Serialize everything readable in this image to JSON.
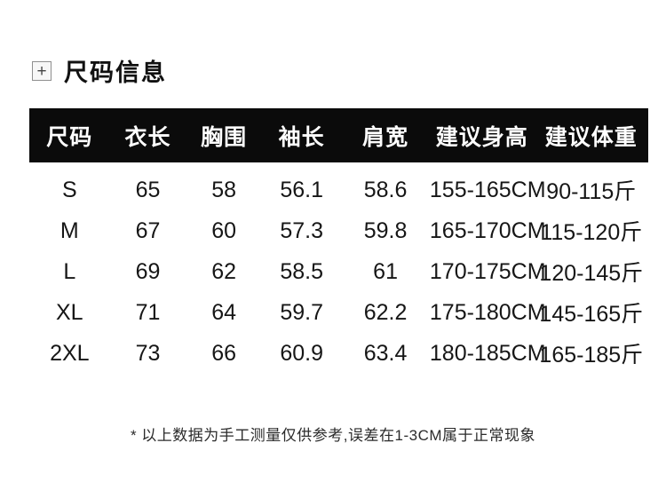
{
  "header": {
    "plus_icon": "+",
    "title": "尺码信息"
  },
  "chart_data": {
    "type": "table",
    "title": "尺码信息",
    "columns": [
      "尺码",
      "衣长",
      "胸围",
      "袖长",
      "肩宽",
      "建议身高",
      "建议体重"
    ],
    "rows": [
      [
        "S",
        "65",
        "58",
        "56.1",
        "58.6",
        "155-165CM",
        "90-115斤"
      ],
      [
        "M",
        "67",
        "60",
        "57.3",
        "59.8",
        "165-170CM",
        "115-120斤"
      ],
      [
        "L",
        "69",
        "62",
        "58.5",
        "61",
        "170-175CM",
        "120-145斤"
      ],
      [
        "XL",
        "71",
        "64",
        "59.7",
        "62.2",
        "175-180CM",
        "145-165斤"
      ],
      [
        "2XL",
        "73",
        "66",
        "60.9",
        "63.4",
        "180-185CM",
        "165-185斤"
      ]
    ],
    "layout": {
      "header_style": "black-bar-white-text",
      "gridlines": false
    }
  },
  "footnote": "* 以上数据为手工测量仅供参考,误差在1-3CM属于正常现象",
  "colors": {
    "page_bg": "#ffffff",
    "header_bg": "#0b0b0b",
    "header_text": "#ffffff",
    "body_text": "#161616"
  }
}
